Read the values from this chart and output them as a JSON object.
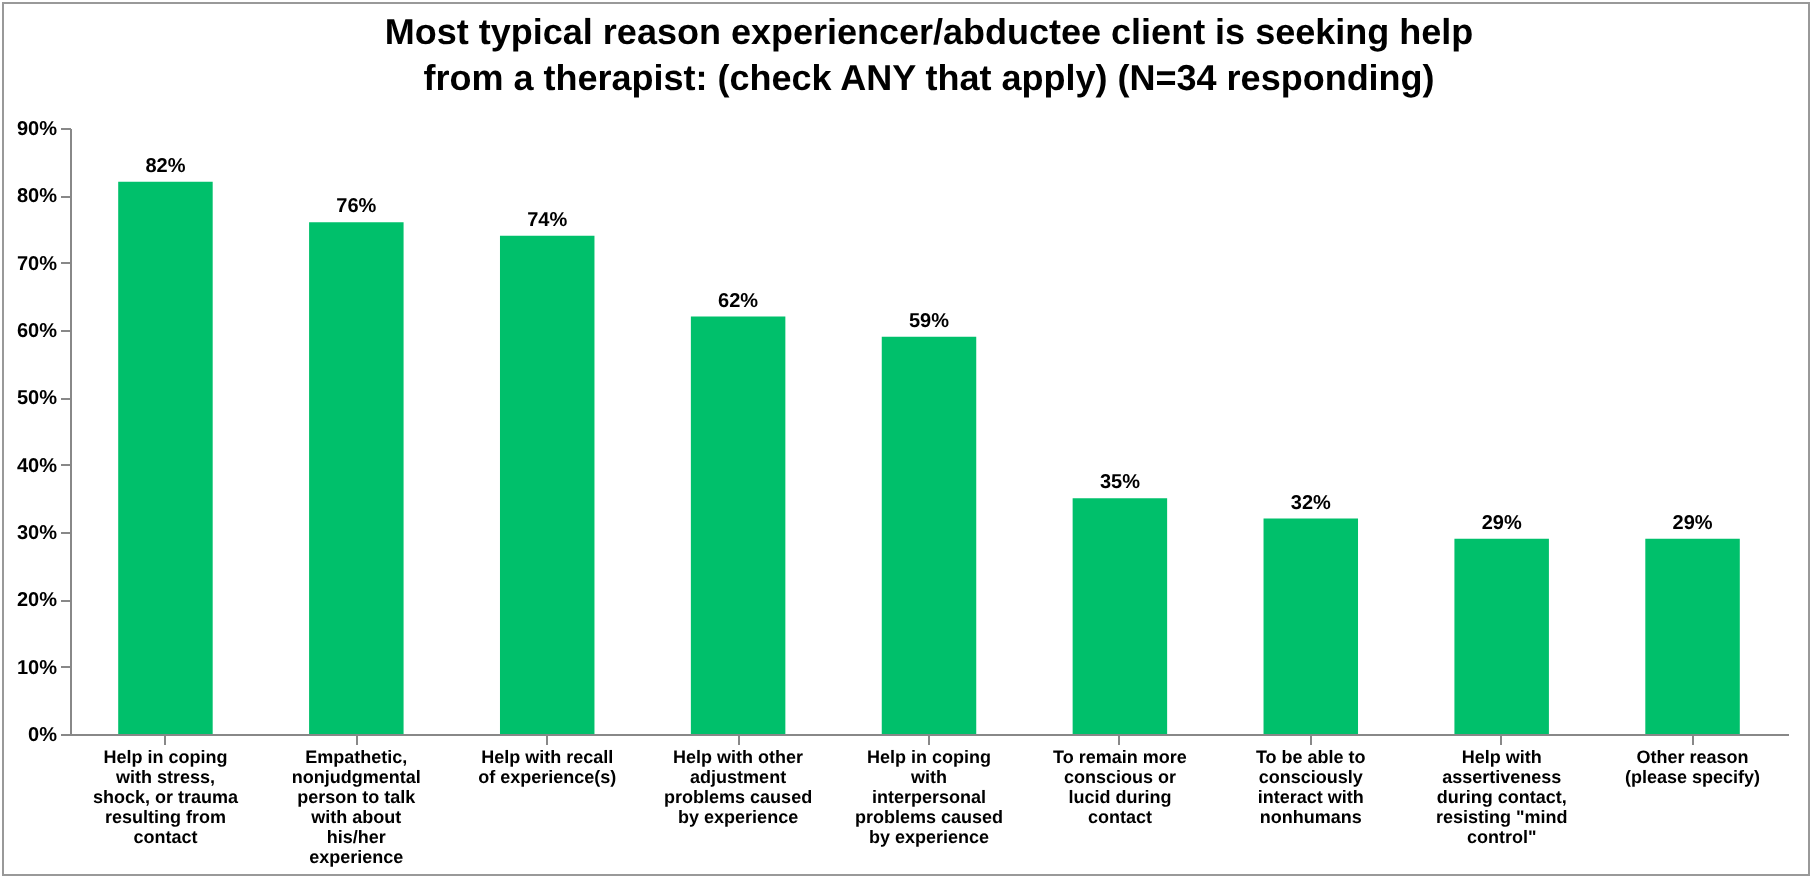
{
  "chart_data": {
    "type": "bar",
    "title": "Most typical reason experiencer/abductee client is seeking help from a therapist: (check ANY that apply) (N=34 responding)",
    "categories": [
      "Help in coping with stress, shock, or trauma resulting from contact",
      "Empathetic, nonjudgmental person to talk with about his/her experience",
      "Help with recall of experience(s)",
      "Help with other adjustment problems caused by experience",
      "Help in coping with interpersonal problems caused by experience",
      "To remain more conscious or lucid during contact",
      "To be able to consciously interact with nonhumans",
      "Help with assertiveness during contact, resisting \"mind control\"",
      "Other reason (please specify)"
    ],
    "values": [
      82,
      76,
      74,
      62,
      59,
      35,
      32,
      29,
      29
    ],
    "value_labels": [
      "82%",
      "76%",
      "74%",
      "62%",
      "59%",
      "35%",
      "32%",
      "29%",
      "29%"
    ],
    "color": "#00c06b",
    "ylim": [
      0,
      90
    ],
    "yticks": [
      {
        "value": 0,
        "label": "0%"
      },
      {
        "value": 10,
        "label": "10%"
      },
      {
        "value": 20,
        "label": "20%"
      },
      {
        "value": 30,
        "label": "30%"
      },
      {
        "value": 40,
        "label": "40%"
      },
      {
        "value": 50,
        "label": "50%"
      },
      {
        "value": 60,
        "label": "60%"
      },
      {
        "value": 70,
        "label": "70%"
      },
      {
        "value": 80,
        "label": "80%"
      },
      {
        "value": 90,
        "label": "90%"
      }
    ],
    "grid": false
  }
}
